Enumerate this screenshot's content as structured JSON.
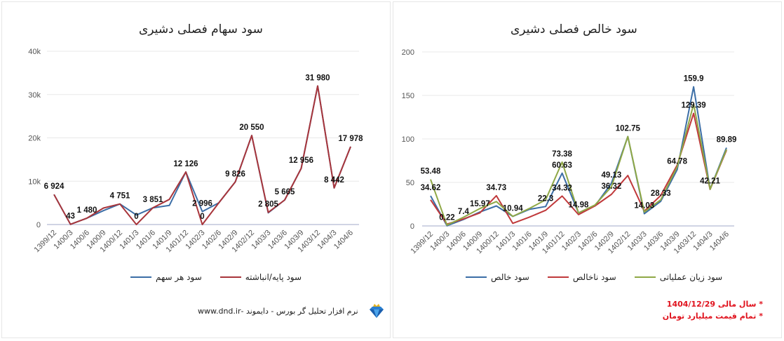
{
  "chart_data": [
    {
      "type": "line",
      "title": "سود سهام فصلی دشیری",
      "categories": [
        "1399/12",
        "1400/3",
        "1400/6",
        "1400/9",
        "1400/12",
        "1401/3",
        "1401/6",
        "1401/9",
        "1401/12",
        "1402/3",
        "1402/6",
        "1402/9",
        "1402/12",
        "1403/3",
        "1403/6",
        "1403/9",
        "1403/12",
        "1404/3",
        "1404/6"
      ],
      "ylim": [
        0,
        40000
      ],
      "yticks": [
        0,
        10000,
        20000,
        30000,
        40000
      ],
      "ytick_labels": [
        "0",
        "10k",
        "20k",
        "30k",
        "40k"
      ],
      "grid": true,
      "legend_position": "bottom",
      "series": [
        {
          "name": "سود هر سهم",
          "color": "#3c6ea6",
          "values": [
            6924,
            43,
            1480,
            3200,
            4751,
            2200,
            3851,
            4400,
            12126,
            2996,
            5000,
            9826,
            20550,
            2700,
            5665,
            12956,
            31980,
            8442,
            17978
          ]
        },
        {
          "name": "سود پایه/انباشته",
          "color": "#a8353b",
          "values": [
            6924,
            43,
            1480,
            3800,
            4751,
            0,
            3851,
            5800,
            12126,
            0,
            5000,
            9826,
            20550,
            2805,
            5665,
            12956,
            31980,
            8442,
            17978
          ]
        }
      ],
      "data_labels": [
        {
          "i": 0,
          "text": "6 924",
          "v": 6924
        },
        {
          "i": 1,
          "text": "43",
          "v": 43
        },
        {
          "i": 2,
          "text": "1 480",
          "v": 1480
        },
        {
          "i": 4,
          "text": "4 751",
          "v": 4751
        },
        {
          "i": 5,
          "text": "0",
          "v": 0
        },
        {
          "i": 6,
          "text": "3 851",
          "v": 3851
        },
        {
          "i": 8,
          "text": "12 126",
          "v": 12126
        },
        {
          "i": 9,
          "text": "2 996",
          "v": 2996
        },
        {
          "i": 9,
          "text": "0",
          "v": 0
        },
        {
          "i": 11,
          "text": "9 826",
          "v": 9826
        },
        {
          "i": 12,
          "text": "20 550",
          "v": 20550
        },
        {
          "i": 13,
          "text": "2 805",
          "v": 2805
        },
        {
          "i": 14,
          "text": "5 665",
          "v": 5665
        },
        {
          "i": 15,
          "text": "12 956",
          "v": 12956
        },
        {
          "i": 16,
          "text": "31 980",
          "v": 31980
        },
        {
          "i": 17,
          "text": "8 442",
          "v": 8442
        },
        {
          "i": 18,
          "text": "17 978",
          "v": 17978
        }
      ]
    },
    {
      "type": "line",
      "title": "سود خالص فصلی دشیری",
      "categories": [
        "1399/12",
        "1400/3",
        "1400/6",
        "1400/9",
        "1400/12",
        "1401/3",
        "1401/6",
        "1401/9",
        "1401/12",
        "1402/3",
        "1402/6",
        "1402/9",
        "1402/12",
        "1403/3",
        "1403/6",
        "1403/9",
        "1403/12",
        "1404/3",
        "1404/6"
      ],
      "ylim": [
        0,
        200
      ],
      "yticks": [
        0,
        50,
        100,
        150,
        200
      ],
      "ytick_labels": [
        "0",
        "50",
        "100",
        "150",
        "200"
      ],
      "grid": true,
      "legend_position": "bottom",
      "series": [
        {
          "name": "سود خالص",
          "color": "#3c6ea6",
          "values": [
            34.62,
            0.22,
            7.4,
            15.97,
            23,
            10.94,
            19,
            22.3,
            60.63,
            14.98,
            23,
            49.13,
            102.75,
            14.03,
            28.33,
            64.78,
            159.9,
            42.21,
            89.89
          ]
        },
        {
          "name": "سود ناخالص",
          "color": "#c0393b",
          "values": [
            30,
            2,
            8,
            15,
            34.73,
            3,
            10,
            18,
            34.32,
            13,
            23,
            36.32,
            58,
            17,
            35,
            70,
            129.39,
            42,
            87
          ]
        },
        {
          "name": "سود زیان عملیاتی",
          "color": "#8fa846",
          "values": [
            53.48,
            1,
            10,
            20,
            28,
            11,
            20,
            30,
            73.38,
            15,
            24,
            45,
            102.75,
            16,
            30,
            68,
            140,
            42.21,
            88
          ]
        }
      ],
      "data_labels": [
        {
          "i": 0,
          "text": "53.48",
          "v": 53.48
        },
        {
          "i": 0,
          "text": "34.62",
          "v": 34.62
        },
        {
          "i": 1,
          "text": "0.22",
          "v": 0.22
        },
        {
          "i": 2,
          "text": "7.4",
          "v": 7.4
        },
        {
          "i": 3,
          "text": "15.97",
          "v": 15.97
        },
        {
          "i": 4,
          "text": "34.73",
          "v": 34.73
        },
        {
          "i": 5,
          "text": "10.94",
          "v": 10.94
        },
        {
          "i": 7,
          "text": "22.3",
          "v": 22.3
        },
        {
          "i": 8,
          "text": "73.38",
          "v": 73.38
        },
        {
          "i": 8,
          "text": "60.63",
          "v": 60.63
        },
        {
          "i": 8,
          "text": "34.32",
          "v": 34.32
        },
        {
          "i": 9,
          "text": "14.98",
          "v": 14.98
        },
        {
          "i": 11,
          "text": "49.13",
          "v": 49.13
        },
        {
          "i": 11,
          "text": "36.32",
          "v": 36.32
        },
        {
          "i": 12,
          "text": "102.75",
          "v": 102.75
        },
        {
          "i": 13,
          "text": "14.03",
          "v": 14.03
        },
        {
          "i": 14,
          "text": "28.33",
          "v": 28.33
        },
        {
          "i": 15,
          "text": "64.78",
          "v": 64.78
        },
        {
          "i": 16,
          "text": "159.9",
          "v": 159.9
        },
        {
          "i": 16,
          "text": "129.39",
          "v": 129.39
        },
        {
          "i": 17,
          "text": "42.21",
          "v": 42.21
        },
        {
          "i": 18,
          "text": "89.89",
          "v": 89.89
        }
      ]
    }
  ],
  "footer": {
    "text": "نرم افزار تحلیل گر بورس - دایموند -www.dnd.ir",
    "logo": "diamond-logo"
  },
  "notes": [
    "* سال مالی 1404/12/29",
    "* تمام قیمت میلیارد تومان"
  ]
}
